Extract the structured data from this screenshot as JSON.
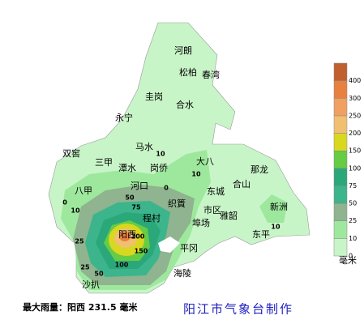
{
  "places": [
    "河朗",
    "松柏",
    "春湾",
    "圭岗",
    "合水",
    "永宁",
    "马水",
    "双窖",
    "三甲",
    "潭水",
    "岗侨",
    "大八",
    "那龙",
    "河口",
    "合山",
    "八甲",
    "新洲",
    "程村",
    "织篢",
    "东城",
    "市区",
    "雅韶",
    "埠场",
    "阳西",
    "平冈",
    "东平",
    "海陵",
    "沙扒"
  ],
  "contour_labels": [
    0,
    10,
    10,
    25,
    50,
    75,
    100,
    150,
    200,
    25,
    50,
    10,
    0,
    10
  ],
  "legend": {
    "unit": "毫米",
    "levels": [
      {
        "value": 0,
        "color": "#c8f5c8"
      },
      {
        "value": 10,
        "color": "#9ee89e"
      },
      {
        "value": 25,
        "color": "#8fb48f"
      },
      {
        "value": 50,
        "color": "#3cb48c"
      },
      {
        "value": 75,
        "color": "#2aa87a"
      },
      {
        "value": 100,
        "color": "#66cc44"
      },
      {
        "value": 150,
        "color": "#d8d820"
      },
      {
        "value": 200,
        "color": "#f0c070"
      },
      {
        "value": 250,
        "color": "#f0a060"
      },
      {
        "value": 300,
        "color": "#e88040"
      },
      {
        "value": 400,
        "color": "#c06030"
      }
    ]
  },
  "footer": {
    "max_rain": "最大雨量：阳西 231.5 毫米",
    "credit": "阳江市气象台制作"
  }
}
